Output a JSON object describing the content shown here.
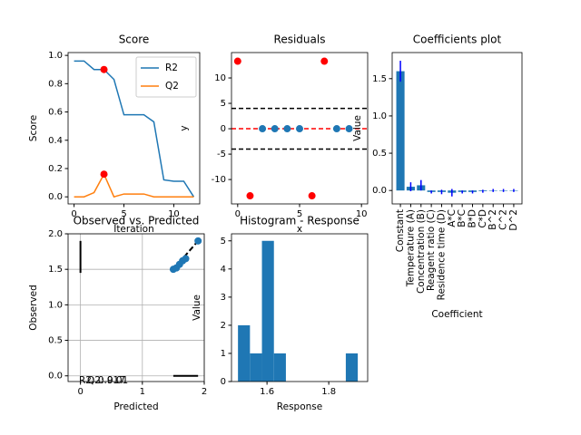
{
  "chart_data": [
    {
      "type": "line",
      "title": "Score",
      "xlabel": "Iteration",
      "ylabel": "Score",
      "x": [
        0,
        1,
        2,
        3,
        4,
        5,
        6,
        7,
        8,
        9,
        10,
        11,
        12
      ],
      "series": [
        {
          "name": "R2",
          "color": "#1f77b4",
          "values": [
            0.96,
            0.96,
            0.9,
            0.9,
            0.83,
            0.58,
            0.58,
            0.58,
            0.53,
            0.12,
            0.11,
            0.11,
            0.0
          ]
        },
        {
          "name": "Q2",
          "color": "#ff7f0e",
          "values": [
            0.0,
            0.0,
            0.03,
            0.16,
            0.0,
            0.02,
            0.02,
            0.02,
            0.0,
            0.0,
            0.0,
            0.0,
            0.0
          ]
        }
      ],
      "markers": {
        "color": "red",
        "x": [
          3,
          3
        ],
        "values": [
          0.9,
          0.16
        ]
      },
      "legend": "upper right",
      "xlim": [
        -0.6,
        12.6
      ],
      "xticks": [
        0,
        5,
        10
      ],
      "ylim": [
        -0.05,
        1.02
      ],
      "yticks": [
        {
          "value": 0,
          "label": "0.0"
        },
        0.2,
        0.4,
        0.6,
        0.8,
        {
          "value": 1,
          "label": "1.0"
        }
      ]
    },
    {
      "type": "scatter",
      "title": "Residuals",
      "xlabel": "x",
      "ylabel": "y",
      "series": [
        {
          "color": "#1f77b4",
          "x": [
            2,
            3,
            4,
            5,
            8,
            9
          ],
          "values": [
            0,
            0,
            0,
            0,
            0,
            0
          ]
        },
        {
          "color": "red",
          "x": [
            0,
            1,
            6,
            7
          ],
          "values": [
            13.3,
            -13.2,
            -13.2,
            13.3
          ]
        }
      ],
      "hlines": [
        {
          "value": 4,
          "color": "black"
        },
        {
          "value": -4,
          "color": "black"
        },
        {
          "value": 0,
          "color": "red"
        }
      ],
      "xlim": [
        -0.5,
        10.5
      ],
      "xticks": [
        0,
        5,
        10
      ],
      "ylim": [
        -14.8,
        15
      ],
      "yticks": [
        -10,
        -5,
        0,
        5,
        10
      ]
    },
    {
      "type": "bar",
      "title": "Coefficients plot",
      "xlabel": "Coefficient",
      "ylabel": "Value",
      "categories": [
        "Constant",
        "Temperature (A)",
        "Concentration (B)",
        "Reagent ratio (C)",
        "Residence time (D)",
        "A*C",
        "B*C",
        "B*D",
        "C*D",
        "B^2",
        "C^2",
        "D^2"
      ],
      "values": [
        1.6,
        0.05,
        0.07,
        -0.02,
        -0.02,
        -0.03,
        -0.02,
        -0.02,
        -0.01,
        0.0,
        0.0,
        0.0
      ],
      "errors": [
        0.14,
        0.06,
        0.07,
        0.02,
        0.03,
        0.05,
        0.02,
        0.02,
        0.02,
        0.02,
        0.02,
        0.02
      ],
      "color": "#1f77b4",
      "error_color": "blue",
      "ylim": [
        -0.18,
        1.85
      ],
      "yticks": [
        {
          "value": 0,
          "label": "0.0"
        },
        0.5,
        {
          "value": 1,
          "label": "1.0"
        },
        1.5
      ]
    },
    {
      "type": "scatter",
      "title": "Observed vs. Predicted",
      "xlabel": "Predicted",
      "ylabel": "Observed",
      "series": [
        {
          "color": "#1f77b4",
          "x": [
            1.5,
            1.55,
            1.6,
            1.65,
            1.7,
            1.9
          ],
          "values": [
            1.5,
            1.52,
            1.57,
            1.62,
            1.65,
            1.9
          ]
        }
      ],
      "lines": [
        {
          "color": "black",
          "dash": true,
          "x": [
            1.5,
            1.9
          ],
          "values": [
            1.5,
            1.9
          ]
        },
        {
          "color": "black",
          "dash": false,
          "x": [
            0,
            0
          ],
          "values": [
            1.45,
            1.9
          ]
        },
        {
          "color": "black",
          "dash": false,
          "x": [
            1.5,
            1.9
          ],
          "values": [
            0,
            0
          ]
        }
      ],
      "annotations": [
        "R2: 0.917",
        "Q2: 0.01"
      ],
      "grid": true,
      "xlim": [
        -0.2,
        2
      ],
      "xticks": [
        0,
        1,
        2
      ],
      "ylim": [
        -0.08,
        2
      ],
      "yticks": [
        {
          "value": 0,
          "label": "0.0"
        },
        0.5,
        {
          "value": 1,
          "label": "1.0"
        },
        1.5,
        {
          "value": 2,
          "label": "2.0"
        }
      ]
    },
    {
      "type": "histogram",
      "title": "Histogram - Response",
      "xlabel": "Response",
      "ylabel": "Value",
      "bins": [
        1.506,
        1.5448,
        1.5836,
        1.6224,
        1.6612,
        1.7,
        1.7388,
        1.7776,
        1.8164,
        1.8552,
        1.894
      ],
      "counts": [
        2,
        1,
        5,
        1,
        0,
        0,
        0,
        0,
        0,
        1
      ],
      "color": "#1f77b4",
      "xlim": [
        1.485,
        1.926
      ],
      "xticks": [
        1.6,
        1.8
      ],
      "ylim": [
        0,
        5.25
      ],
      "yticks": [
        0,
        1,
        2,
        3,
        4,
        5
      ]
    }
  ]
}
